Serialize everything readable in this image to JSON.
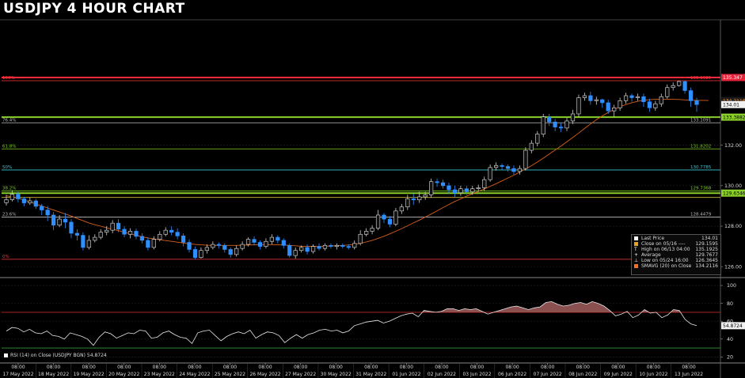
{
  "title": "USDJPY 4 HOUR CHART",
  "chart_data": [
    {
      "type": "candlestick",
      "title": "USDJPY 4 HOUR CHART",
      "ylim": [
        125.5,
        138.2
      ],
      "yticks": [
        "126.00",
        "128.00",
        "130.00",
        "132.00"
      ],
      "x_tick_time": "08:00",
      "x_dates": [
        "17 May 2022",
        "18 May 2022",
        "19 May 2022",
        "20 May 2022",
        "23 May 2022",
        "24 May 2022",
        "25 May 2022",
        "26 May 2022",
        "27 May 2022",
        "30 May 2022",
        "31 May 2022",
        "01 Jun 2022",
        "02 Jun 2022",
        "03 Jun 2022",
        "06 Jun 2022",
        "07 Jun 2022",
        "08 Jun 2022",
        "09 Jun 2022",
        "10 Jun 2022",
        "13 Jun 2022"
      ],
      "candles": [
        [
          129.16,
          129.31,
          129.55,
          129.02
        ],
        [
          129.31,
          129.58,
          129.78,
          129.22
        ],
        [
          129.58,
          129.35,
          129.7,
          129.18
        ],
        [
          129.35,
          129.15,
          129.45,
          128.98
        ],
        [
          129.15,
          129.25,
          129.42,
          129.05
        ],
        [
          129.25,
          128.98,
          129.35,
          128.85
        ],
        [
          128.98,
          128.8,
          129.1,
          128.55
        ],
        [
          128.8,
          128.55,
          129.0,
          128.25
        ],
        [
          128.55,
          128.05,
          128.7,
          127.8
        ],
        [
          128.05,
          128.35,
          128.55,
          127.95
        ],
        [
          128.35,
          128.2,
          128.65,
          127.9
        ],
        [
          128.2,
          127.65,
          128.35,
          127.4
        ],
        [
          127.65,
          127.55,
          127.85,
          127.3
        ],
        [
          127.55,
          126.95,
          127.7,
          126.8
        ],
        [
          126.95,
          127.3,
          127.55,
          126.85
        ],
        [
          127.3,
          127.45,
          127.6,
          127.2
        ],
        [
          127.45,
          127.7,
          127.85,
          127.35
        ],
        [
          127.7,
          127.8,
          128.0,
          127.55
        ],
        [
          127.8,
          128.15,
          128.3,
          127.65
        ],
        [
          128.15,
          127.85,
          128.35,
          127.7
        ],
        [
          127.85,
          127.6,
          128.0,
          127.45
        ],
        [
          127.6,
          127.75,
          127.9,
          127.4
        ],
        [
          127.75,
          127.5,
          127.88,
          127.35
        ],
        [
          127.5,
          127.3,
          127.65,
          127.15
        ],
        [
          127.3,
          126.95,
          127.45,
          126.8
        ],
        [
          126.95,
          127.35,
          127.5,
          126.85
        ],
        [
          127.35,
          127.6,
          127.75,
          127.25
        ],
        [
          127.6,
          127.8,
          127.95,
          127.5
        ],
        [
          127.8,
          127.7,
          128.0,
          127.55
        ],
        [
          127.7,
          127.52,
          127.9,
          127.35
        ],
        [
          127.52,
          127.2,
          127.65,
          127.0
        ],
        [
          127.2,
          126.85,
          127.35,
          126.7
        ],
        [
          126.85,
          126.45,
          127.0,
          126.36
        ],
        [
          126.45,
          126.8,
          126.95,
          126.4
        ],
        [
          126.8,
          126.95,
          127.1,
          126.65
        ],
        [
          126.95,
          127.1,
          127.25,
          126.85
        ],
        [
          127.1,
          127.05,
          127.2,
          126.9
        ],
        [
          127.05,
          126.85,
          127.15,
          126.7
        ],
        [
          126.85,
          126.6,
          126.95,
          126.45
        ],
        [
          126.6,
          126.9,
          127.05,
          126.5
        ],
        [
          126.9,
          127.1,
          127.25,
          126.8
        ],
        [
          127.1,
          127.35,
          127.45,
          127.0
        ],
        [
          127.35,
          127.2,
          127.5,
          127.05
        ],
        [
          127.2,
          127.0,
          127.3,
          126.85
        ],
        [
          127.0,
          127.25,
          127.4,
          126.9
        ],
        [
          127.25,
          127.45,
          127.6,
          127.1
        ],
        [
          127.45,
          127.3,
          127.55,
          127.15
        ],
        [
          127.3,
          127.05,
          127.4,
          126.9
        ],
        [
          127.05,
          126.55,
          127.15,
          126.45
        ],
        [
          126.55,
          126.8,
          126.95,
          126.4
        ],
        [
          126.8,
          126.95,
          127.05,
          126.7
        ],
        [
          126.95,
          126.75,
          127.1,
          126.6
        ],
        [
          126.75,
          127.0,
          127.1,
          126.65
        ],
        [
          127.0,
          126.9,
          127.15,
          126.8
        ],
        [
          126.9,
          127.05,
          127.15,
          126.8
        ],
        [
          127.05,
          127.0,
          127.15,
          126.9
        ],
        [
          127.0,
          127.05,
          127.15,
          126.85
        ],
        [
          127.05,
          127.0,
          127.15,
          126.9
        ],
        [
          127.0,
          126.95,
          127.1,
          126.85
        ],
        [
          126.95,
          127.15,
          127.3,
          126.85
        ],
        [
          127.15,
          127.6,
          127.8,
          127.05
        ],
        [
          127.6,
          127.75,
          127.9,
          127.5
        ],
        [
          127.75,
          127.9,
          128.05,
          127.6
        ],
        [
          127.9,
          128.55,
          128.8,
          127.8
        ],
        [
          128.55,
          128.35,
          128.65,
          128.15
        ],
        [
          128.35,
          128.1,
          128.5,
          127.95
        ],
        [
          128.1,
          128.75,
          128.9,
          128.0
        ],
        [
          128.75,
          128.95,
          129.1,
          128.6
        ],
        [
          128.95,
          129.35,
          129.55,
          128.8
        ],
        [
          129.35,
          129.3,
          129.6,
          129.05
        ],
        [
          129.3,
          129.45,
          129.7,
          129.15
        ],
        [
          129.45,
          129.55,
          129.7,
          129.3
        ],
        [
          129.55,
          130.2,
          130.35,
          129.4
        ],
        [
          130.2,
          130.15,
          130.35,
          129.95
        ],
        [
          130.15,
          130.0,
          130.3,
          129.85
        ],
        [
          130.0,
          129.8,
          130.15,
          129.6
        ],
        [
          129.8,
          129.65,
          130.0,
          129.45
        ],
        [
          129.65,
          129.85,
          130.0,
          129.5
        ],
        [
          129.85,
          129.7,
          130.0,
          129.55
        ],
        [
          129.7,
          129.85,
          130.0,
          129.55
        ],
        [
          129.85,
          129.9,
          130.05,
          129.7
        ],
        [
          129.9,
          130.3,
          130.45,
          129.75
        ],
        [
          130.3,
          130.9,
          131.05,
          130.2
        ],
        [
          130.9,
          131.0,
          131.15,
          130.75
        ],
        [
          131.0,
          130.95,
          131.1,
          130.8
        ],
        [
          130.95,
          130.85,
          131.05,
          130.7
        ],
        [
          130.85,
          130.7,
          131.0,
          130.55
        ],
        [
          130.7,
          130.85,
          131.0,
          130.55
        ],
        [
          130.85,
          131.75,
          131.9,
          130.75
        ],
        [
          131.75,
          132.1,
          132.25,
          131.6
        ],
        [
          132.1,
          132.55,
          132.7,
          131.95
        ],
        [
          132.55,
          133.4,
          133.55,
          132.4
        ],
        [
          133.4,
          133.15,
          133.55,
          132.95
        ],
        [
          133.15,
          132.9,
          133.3,
          132.7
        ],
        [
          132.9,
          132.85,
          133.1,
          132.65
        ],
        [
          132.85,
          133.2,
          133.35,
          132.7
        ],
        [
          133.2,
          133.55,
          133.75,
          133.05
        ],
        [
          133.55,
          134.35,
          134.5,
          133.4
        ],
        [
          134.35,
          134.45,
          134.6,
          134.2
        ],
        [
          134.45,
          134.2,
          134.65,
          134.0
        ],
        [
          134.2,
          134.25,
          134.4,
          134.0
        ],
        [
          134.25,
          134.1,
          134.3,
          133.85
        ],
        [
          134.1,
          133.7,
          134.25,
          133.55
        ],
        [
          133.7,
          133.85,
          134.0,
          133.4
        ],
        [
          133.85,
          134.2,
          134.35,
          133.7
        ],
        [
          134.2,
          134.45,
          134.6,
          134.05
        ],
        [
          134.45,
          134.35,
          134.55,
          134.15
        ],
        [
          134.35,
          134.4,
          134.55,
          134.2
        ],
        [
          134.4,
          134.15,
          134.55,
          133.9
        ],
        [
          134.15,
          133.85,
          134.3,
          133.65
        ],
        [
          133.85,
          134.05,
          134.2,
          133.7
        ],
        [
          134.05,
          134.4,
          134.55,
          133.9
        ],
        [
          134.4,
          134.85,
          135.0,
          134.3
        ],
        [
          134.85,
          134.95,
          135.1,
          134.7
        ],
        [
          134.95,
          135.15,
          135.19,
          134.9
        ],
        [
          135.15,
          134.7,
          135.19,
          134.55
        ],
        [
          134.7,
          134.2,
          134.85,
          133.9
        ],
        [
          134.2,
          134.01,
          134.35,
          133.65
        ]
      ],
      "sma": {
        "name": "SMAVG (20)  on Close",
        "values": [
          129.5,
          129.45,
          129.38,
          129.3,
          129.2,
          129.1,
          129.0,
          128.9,
          128.8,
          128.7,
          128.6,
          128.5,
          128.38,
          128.27,
          128.16,
          128.07,
          128.0,
          127.92,
          127.85,
          127.78,
          127.7,
          127.62,
          127.55,
          127.48,
          127.42,
          127.37,
          127.33,
          127.29,
          127.25,
          127.21,
          127.17,
          127.13,
          127.1,
          127.08,
          127.06,
          127.05,
          127.05,
          127.05,
          127.05,
          127.05,
          127.06,
          127.07,
          127.08,
          127.09,
          127.09,
          127.09,
          127.08,
          127.07,
          127.05,
          127.03,
          127.01,
          127.0,
          127.0,
          127.0,
          127.01,
          127.02,
          127.03,
          127.05,
          127.07,
          127.1,
          127.15,
          127.22,
          127.3,
          127.4,
          127.5,
          127.62,
          127.75,
          127.88,
          128.02,
          128.16,
          128.3,
          128.45,
          128.6,
          128.76,
          128.92,
          129.07,
          129.22,
          129.35,
          129.48,
          129.6,
          129.72,
          129.84,
          129.97,
          130.1,
          130.24,
          130.38,
          130.52,
          130.67,
          130.83,
          130.99,
          131.17,
          131.36,
          131.56,
          131.76,
          131.96,
          132.17,
          132.38,
          132.6,
          132.83,
          133.05,
          133.26,
          133.45,
          133.62,
          133.77,
          133.9,
          134.01,
          134.1,
          134.17,
          134.22,
          134.25,
          134.27,
          134.28,
          134.27,
          134.27,
          134.26,
          134.24,
          134.23,
          134.22,
          134.22,
          134.21
        ]
      },
      "fib_levels": [
        {
          "label": "100%",
          "value": 135.1925,
          "value_label": "135.1925",
          "color": "#ff3b3b"
        },
        {
          "label": "76.4%",
          "value": 133.1091,
          "value_label": "133.1091",
          "color": "#bbbbbb"
        },
        {
          "label": "61.8%",
          "value": 131.8202,
          "value_label": "131.8202",
          "color": "#7ed321"
        },
        {
          "label": "50%",
          "value": 130.7785,
          "value_label": "130.7785",
          "color": "#38c8d8"
        },
        {
          "label": "38.2%",
          "value": 129.7368,
          "value_label": "129.7368",
          "color": "#7ed321"
        },
        {
          "label": "23.6%",
          "value": 128.4479,
          "value_label": "128.4479",
          "color": "#bbbbbb"
        },
        {
          "label": "0%",
          "value": 126.3645,
          "value_label": "",
          "color": "#ff3b3b"
        }
      ],
      "horizontal_lines": [
        {
          "value": 135.347,
          "label": "135.347",
          "color": "#ff2a3a",
          "tag_bg": "#e8243a",
          "tag_fg": "#ffffff"
        },
        {
          "value": 133.3882,
          "label": "133.3882",
          "color": "#8bd02a",
          "tag_bg": "#8bd02a",
          "tag_fg": "#000000"
        },
        {
          "value": 129.6346,
          "label": "129.6346",
          "color": "#8bd02a",
          "tag_bg": "#8bd02a",
          "tag_fg": "#000000"
        },
        {
          "value": 129.42,
          "label": "",
          "color": "#b8a030"
        }
      ],
      "price_tags": [
        {
          "value": 134.2116,
          "label": "134.2116",
          "bg": "#1a1a1a",
          "fg": "#ff8a2a"
        },
        {
          "value": 134.01,
          "label": "134.01",
          "bg": "#f2f2f2",
          "fg": "#000000"
        }
      ],
      "legend": [
        {
          "symbol": "box",
          "color": "#ffffff",
          "label": "Last Price",
          "value": "134.01"
        },
        {
          "symbol": "box",
          "color": "#e8a020",
          "label": "Close on 05/16 ----",
          "value": "129.1595"
        },
        {
          "symbol": "T",
          "color": "#ffffff",
          "label": "High on 06/13 04:00",
          "value": "135.1925"
        },
        {
          "symbol": "+",
          "color": "#ffffff",
          "label": "Average",
          "value": "129.7677"
        },
        {
          "symbol": "⊥",
          "color": "#ffffff",
          "label": "Low on 05/24 16:00",
          "value": "126.3645"
        },
        {
          "symbol": "box",
          "color": "#ff6a20",
          "label": "SMAVG (20)  on Close",
          "value": "134.2116"
        }
      ],
      "colors": {
        "up": "#111111",
        "up_edge": "#e0e0e0",
        "down": "#2f8fff",
        "sma": "#d8601a"
      }
    },
    {
      "type": "line",
      "name": "RSI (14)  on Close (USDJPY BGN) 54.8724",
      "ylim": [
        15,
        108
      ],
      "yticks": [
        "20",
        "40",
        "60",
        "80",
        "100"
      ],
      "overbought": 70,
      "oversold": 30,
      "last_label": "54.8724",
      "values": [
        49,
        53,
        52,
        48,
        51,
        47,
        46,
        49,
        44,
        43,
        40,
        47,
        45,
        43,
        40,
        33,
        42,
        48,
        46,
        41,
        44,
        47,
        46,
        50,
        49,
        41,
        42,
        47,
        49,
        45,
        42,
        41,
        35,
        47,
        49,
        50,
        44,
        38,
        43,
        46,
        48,
        46,
        50,
        41,
        45,
        48,
        47,
        44,
        36,
        41,
        45,
        41,
        45,
        47,
        50,
        51,
        49,
        50,
        47,
        49,
        55,
        57,
        59,
        60,
        61,
        58,
        60,
        63,
        66,
        68,
        69,
        65,
        72,
        71,
        70,
        71,
        74,
        74,
        72,
        74,
        73,
        74,
        71,
        68,
        70,
        72,
        74,
        76,
        77,
        75,
        73,
        75,
        76,
        81,
        82,
        79,
        77,
        78,
        80,
        81,
        79,
        82,
        80,
        77,
        72,
        66,
        68,
        71,
        64,
        67,
        73,
        69,
        70,
        64,
        67,
        73,
        72,
        62,
        57,
        55
      ]
    }
  ]
}
